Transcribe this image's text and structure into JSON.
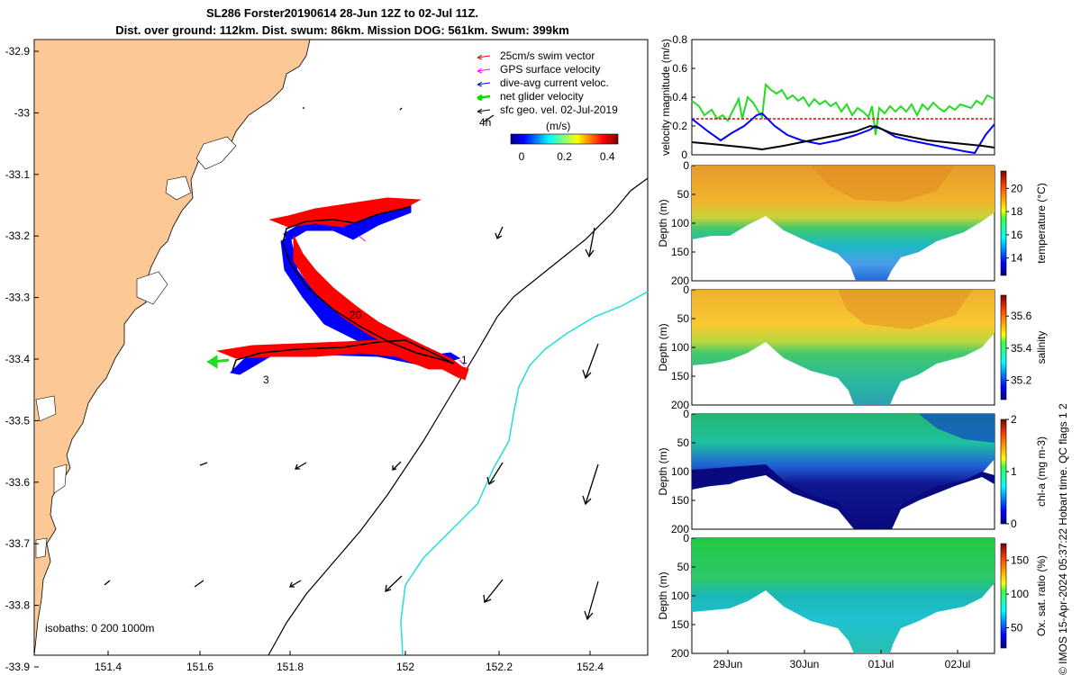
{
  "title_line1": "SL286 Forster20190614 28-Jun 12Z to 02-Jul 11Z.",
  "title_line2": "Dist. over ground: 112km. Dist. swum: 86km. Mission DOG: 561km. Swum: 399km",
  "footer_text": "© IMOS 15-Apr-2024 05:37:22 Hobart time. QC flags 1  2",
  "chart_data": [
    {
      "type": "map",
      "x_ticks": [
        "151.4",
        "151.6",
        "151.8",
        "152",
        "152.2",
        "152.4"
      ],
      "y_ticks": [
        "-32.9",
        "-33",
        "-33.1",
        "-33.2",
        "-33.3",
        "-33.4",
        "-33.5",
        "-33.6",
        "-33.7",
        "-33.8",
        "-33.9"
      ],
      "xlim": [
        151.25,
        152.5
      ],
      "ylim": [
        -33.95,
        -32.88
      ],
      "legend": [
        {
          "label": "25cm/s swim vector",
          "color": "#ff0000"
        },
        {
          "label": "GPS surface velocity",
          "color": "#ff00ff"
        },
        {
          "label": "dive-avg current veloc.",
          "color": "#0000ff"
        },
        {
          "label": "net glider velocity",
          "color": "#00dd00"
        },
        {
          "label": "sfc geo. vel. 02-Jul-2019",
          "color": "#000000"
        }
      ],
      "legend_position": "top-right",
      "scale_arrow_label": "4h",
      "colorbar": {
        "label": "(m/s)",
        "ticks": [
          "0",
          "0.2",
          "0.4"
        ],
        "range": [
          0,
          0.5
        ]
      },
      "track_annotations": [
        "20",
        "1",
        "3"
      ],
      "isobaths_label": "isobaths: 0   200  1000m"
    },
    {
      "type": "line",
      "ylabel": "velocity magnitude (m/s)",
      "y_ticks": [
        "0",
        "0.2",
        "0.4",
        "0.6",
        "0.8"
      ],
      "ylim": [
        0,
        0.8
      ],
      "series_colors": [
        "#00dd00",
        "#ff0000",
        "#0000ff",
        "#000000"
      ]
    },
    {
      "type": "heatmap",
      "colorbar_label": "temperature (°C)",
      "colorbar_ticks": [
        "14",
        "16",
        "18",
        "20"
      ],
      "ylabel": "Depth (m)",
      "y_ticks": [
        "0",
        "50",
        "100",
        "150",
        "200"
      ]
    },
    {
      "type": "heatmap",
      "colorbar_label": "salinity",
      "colorbar_ticks": [
        "35.2",
        "35.4",
        "35.6"
      ],
      "ylabel": "Depth (m)",
      "y_ticks": [
        "0",
        "50",
        "100",
        "150",
        "200"
      ]
    },
    {
      "type": "heatmap",
      "colorbar_label": "chl-a (mg m-3)",
      "colorbar_ticks": [
        "0",
        "1",
        "2"
      ],
      "ylabel": "Depth (m)",
      "y_ticks": [
        "0",
        "50",
        "100",
        "150",
        "200"
      ]
    },
    {
      "type": "heatmap",
      "colorbar_label": "Ox. sat. ratio (%)",
      "colorbar_ticks": [
        "50",
        "100",
        "150"
      ],
      "ylabel": "Depth (m)",
      "y_ticks": [
        "0",
        "50",
        "100",
        "150",
        "200"
      ],
      "x_ticks": [
        "29Jun",
        "30Jun",
        "01Jul",
        "02Jul"
      ]
    }
  ]
}
